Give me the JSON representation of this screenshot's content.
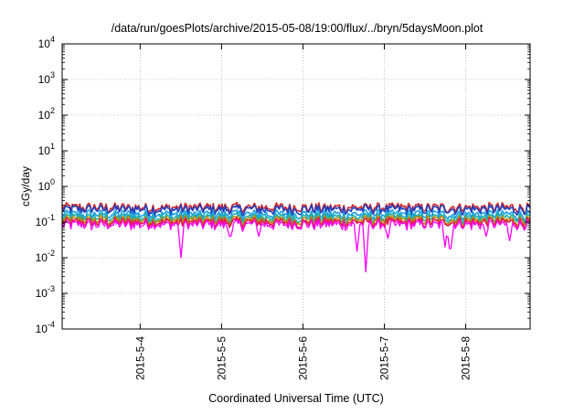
{
  "chart_data": {
    "type": "line",
    "title": "/data/run/goesPlots/archive/2015-05-08/19:00/flux/../bryn/5daysMoon.plot",
    "xlabel": "Coordinated Universal Time (UTC)",
    "ylabel": "cGy/day",
    "yscale": "log",
    "ylim": [
      0.0001,
      10000
    ],
    "y_ticks": [
      {
        "value": 0.0001,
        "base": "10",
        "exp": "-4"
      },
      {
        "value": 0.001,
        "base": "10",
        "exp": "-3"
      },
      {
        "value": 0.01,
        "base": "10",
        "exp": "-2"
      },
      {
        "value": 0.1,
        "base": "10",
        "exp": "-1"
      },
      {
        "value": 1,
        "base": "10",
        "exp": "0"
      },
      {
        "value": 10,
        "base": "10",
        "exp": "1"
      },
      {
        "value": 100,
        "base": "10",
        "exp": "2"
      },
      {
        "value": 1000,
        "base": "10",
        "exp": "3"
      },
      {
        "value": 10000,
        "base": "10",
        "exp": "4"
      }
    ],
    "xlim": [
      "2015-05-03T01:00",
      "2015-05-08T19:00"
    ],
    "x_ticks": [
      {
        "value": "2015-05-04T00:00",
        "label": "2015-5-4"
      },
      {
        "value": "2015-05-05T00:00",
        "label": "2015-5-5"
      },
      {
        "value": "2015-05-06T00:00",
        "label": "2015-5-6"
      },
      {
        "value": "2015-05-07T00:00",
        "label": "2015-5-7"
      },
      {
        "value": "2015-05-08T00:00",
        "label": "2015-5-8"
      }
    ],
    "grid": true,
    "legend": "none",
    "series_style": [
      {
        "color": "#d62728",
        "base": 0.25,
        "dips": false
      },
      {
        "color": "#1f3fbf",
        "base": 0.22,
        "dips": false
      },
      {
        "color": "#1aa0e0",
        "base": 0.16,
        "dips": false
      },
      {
        "color": "#20b2aa",
        "base": 0.13,
        "dips": false
      },
      {
        "color": "#b8860b",
        "base": 0.11,
        "dips": false
      },
      {
        "color": "#e6194b",
        "base": 0.095,
        "dips": false
      },
      {
        "color": "#ff00ff",
        "base": 0.082,
        "dips": true
      }
    ],
    "magenta_dips": [
      {
        "x": "2015-05-04T12:00",
        "y": 0.01
      },
      {
        "x": "2015-05-05T02:30",
        "y": 0.04
      },
      {
        "x": "2015-05-05T11:00",
        "y": 0.04
      },
      {
        "x": "2015-05-06T16:00",
        "y": 0.015
      },
      {
        "x": "2015-05-06T18:30",
        "y": 0.004
      },
      {
        "x": "2015-05-07T01:00",
        "y": 0.035
      },
      {
        "x": "2015-05-07T18:00",
        "y": 0.02
      },
      {
        "x": "2015-05-07T19:30",
        "y": 0.018
      },
      {
        "x": "2015-05-08T06:00",
        "y": 0.04
      },
      {
        "x": "2015-05-08T13:00",
        "y": 0.03
      }
    ]
  }
}
